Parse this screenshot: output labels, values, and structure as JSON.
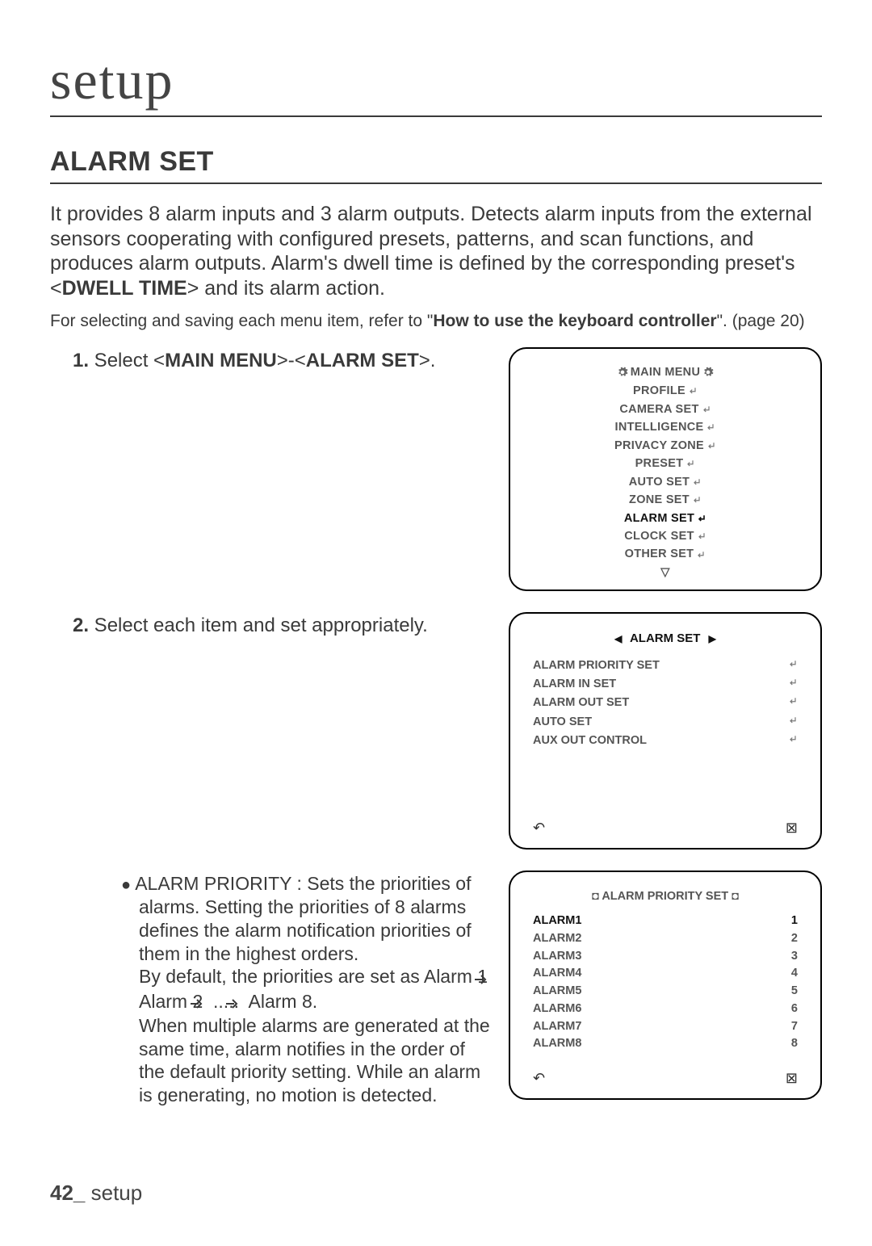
{
  "chapter": "setup",
  "section_title": "ALARM SET",
  "intro_part1": "It provides 8 alarm inputs and 3 alarm outputs. Detects alarm inputs from the external sensors cooperating with configured presets, patterns, and scan functions, and produces alarm outputs. Alarm's dwell time is defined by the corresponding preset's <",
  "intro_bold": "DWELL TIME",
  "intro_part2": "> and its alarm action.",
  "subnote_a": "For selecting and saving each menu item, refer to \"",
  "subnote_bold": "How to use the keyboard controller",
  "subnote_b": "\". (page 20)",
  "step1_num": "1.",
  "step1_a": " Select <",
  "step1_b1": "MAIN MENU",
  "step1_mid": ">-<",
  "step1_b2": "ALARM SET",
  "step1_end": ">.",
  "step2_num": "2.",
  "step2_text": " Select each item and set appropriately.",
  "bullet_text": "ALARM PRIORITY : Sets the priorities of alarms. Setting the priorities of 8 alarms defines the alarm notification priorities of them in the highest orders.\nBy default, the priorities are set as Alarm 1 ",
  "bullet_mid1": " Alarm 2 ",
  "bullet_mid2": " ..... ",
  "bullet_mid3": " Alarm 8.\nWhen multiple alarms are generated at the same time, alarm notifies in the order of the default priority setting. While an alarm is generating, no motion is detected.",
  "main_menu": {
    "title": "MAIN MENU",
    "items": [
      "PROFILE",
      "CAMERA SET",
      "INTELLIGENCE",
      "PRIVACY ZONE",
      "PRESET",
      "AUTO SET",
      "ZONE SET",
      "ALARM SET",
      "CLOCK SET",
      "OTHER SET"
    ],
    "highlight_index": 7,
    "down_tri": "▽"
  },
  "alarm_set_panel": {
    "title": "ALARM SET",
    "items": [
      "ALARM PRIORITY SET",
      "ALARM IN SET",
      "ALARM OUT SET",
      "AUTO SET",
      "AUX OUT CONTROL"
    ],
    "back_icon": "↶",
    "close_icon": "⊠"
  },
  "priority_panel": {
    "title_mark": "◘",
    "title": "ALARM PRIORITY SET",
    "rows": [
      {
        "label": "ALARM1",
        "val": "1",
        "hl": true
      },
      {
        "label": "ALARM2",
        "val": "2",
        "hl": false
      },
      {
        "label": "ALARM3",
        "val": "3",
        "hl": false
      },
      {
        "label": "ALARM4",
        "val": "4",
        "hl": false
      },
      {
        "label": "ALARM5",
        "val": "5",
        "hl": false
      },
      {
        "label": "ALARM6",
        "val": "6",
        "hl": false
      },
      {
        "label": "ALARM7",
        "val": "7",
        "hl": false
      },
      {
        "label": "ALARM8",
        "val": "8",
        "hl": false
      }
    ],
    "back_icon": "↶",
    "close_icon": "⊠"
  },
  "footer_page": "42_",
  "footer_text": " setup"
}
